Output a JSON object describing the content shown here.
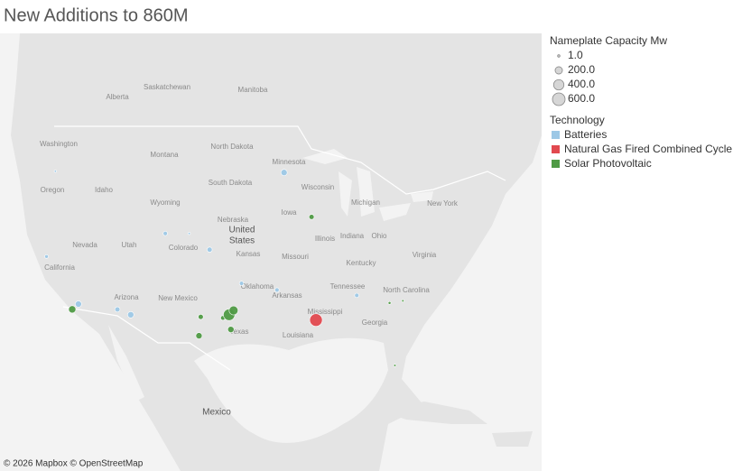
{
  "title": "New Additions to 860M",
  "legend_size": {
    "title": "Nameplate Capacity Mw",
    "values": [
      {
        "value": 1,
        "label": "1.0"
      },
      {
        "value": 200,
        "label": "200.0"
      },
      {
        "value": 400,
        "label": "400.0"
      },
      {
        "value": 600,
        "label": "600.0"
      }
    ]
  },
  "legend_color": {
    "title": "Technology",
    "items": [
      {
        "name": "Batteries",
        "color": "#9dc8e6"
      },
      {
        "name": "Natural Gas Fired Combined Cycle",
        "color": "#e1494f"
      },
      {
        "name": "Solar Photovoltaic",
        "color": "#4f9a45"
      }
    ]
  },
  "points": [
    {
      "technology": "Batteries",
      "lon": -119.4,
      "lat": 45.9,
      "capacity": 5
    },
    {
      "technology": "Batteries",
      "lon": -120.4,
      "lat": 38.8,
      "capacity": 50
    },
    {
      "technology": "Batteries",
      "lon": -116.8,
      "lat": 34.5,
      "capacity": 150
    },
    {
      "technology": "Batteries",
      "lon": -112.4,
      "lat": 34.0,
      "capacity": 100
    },
    {
      "technology": "Batteries",
      "lon": -110.9,
      "lat": 33.5,
      "capacity": 150
    },
    {
      "technology": "Batteries",
      "lon": -107.0,
      "lat": 40.8,
      "capacity": 70
    },
    {
      "technology": "Batteries",
      "lon": -104.3,
      "lat": 40.8,
      "capacity": 20
    },
    {
      "technology": "Batteries",
      "lon": -102.0,
      "lat": 39.4,
      "capacity": 100
    },
    {
      "technology": "Batteries",
      "lon": -98.4,
      "lat": 36.4,
      "capacity": 70
    },
    {
      "technology": "Batteries",
      "lon": -94.4,
      "lat": 35.8,
      "capacity": 70
    },
    {
      "technology": "Batteries",
      "lon": -93.6,
      "lat": 45.8,
      "capacity": 150
    },
    {
      "technology": "Batteries",
      "lon": -85.4,
      "lat": 35.3,
      "capacity": 70
    },
    {
      "technology": "Natural Gas Fired Combined Cycle",
      "lon": -90.0,
      "lat": 33.0,
      "capacity": 600
    },
    {
      "technology": "Solar Photovoltaic",
      "lon": -117.5,
      "lat": 34.0,
      "capacity": 200
    },
    {
      "technology": "Solar Photovoltaic",
      "lon": -90.5,
      "lat": 42.2,
      "capacity": 100
    },
    {
      "technology": "Solar Photovoltaic",
      "lon": -103.0,
      "lat": 33.3,
      "capacity": 100
    },
    {
      "technology": "Solar Photovoltaic",
      "lon": -100.5,
      "lat": 33.2,
      "capacity": 80
    },
    {
      "technology": "Solar Photovoltaic",
      "lon": -99.8,
      "lat": 33.5,
      "capacity": 500
    },
    {
      "technology": "Solar Photovoltaic",
      "lon": -99.3,
      "lat": 33.9,
      "capacity": 300
    },
    {
      "technology": "Solar Photovoltaic",
      "lon": -103.2,
      "lat": 31.5,
      "capacity": 150
    },
    {
      "technology": "Solar Photovoltaic",
      "lon": -99.6,
      "lat": 32.1,
      "capacity": 150
    },
    {
      "technology": "Solar Photovoltaic",
      "lon": -81.7,
      "lat": 34.6,
      "capacity": 30
    },
    {
      "technology": "Solar Photovoltaic",
      "lon": -80.2,
      "lat": 34.8,
      "capacity": 20
    },
    {
      "technology": "Solar Photovoltaic",
      "lon": -81.1,
      "lat": 28.6,
      "capacity": 20
    }
  ],
  "map_labels": [
    "United",
    "States",
    "Mexico",
    "California",
    "Nevada",
    "Oregon",
    "Idaho",
    "Utah",
    "Arizona",
    "New Mexico",
    "Colorado",
    "Wyoming",
    "Montana",
    "Washington",
    "North Dakota",
    "South Dakota",
    "Nebraska",
    "Kansas",
    "Oklahoma",
    "Texas",
    "Minnesota",
    "Iowa",
    "Missouri",
    "Arkansas",
    "Louisiana",
    "Illinois",
    "Indiana",
    "Ohio",
    "Kentucky",
    "Tennessee",
    "Georgia",
    "Wisconsin",
    "Michigan",
    "New York",
    "Virginia",
    "North Carolina",
    "Mississippi",
    "Saskatchewan",
    "Alberta",
    "Manitoba"
  ],
  "attribution": "© 2026 Mapbox © OpenStreetMap"
}
